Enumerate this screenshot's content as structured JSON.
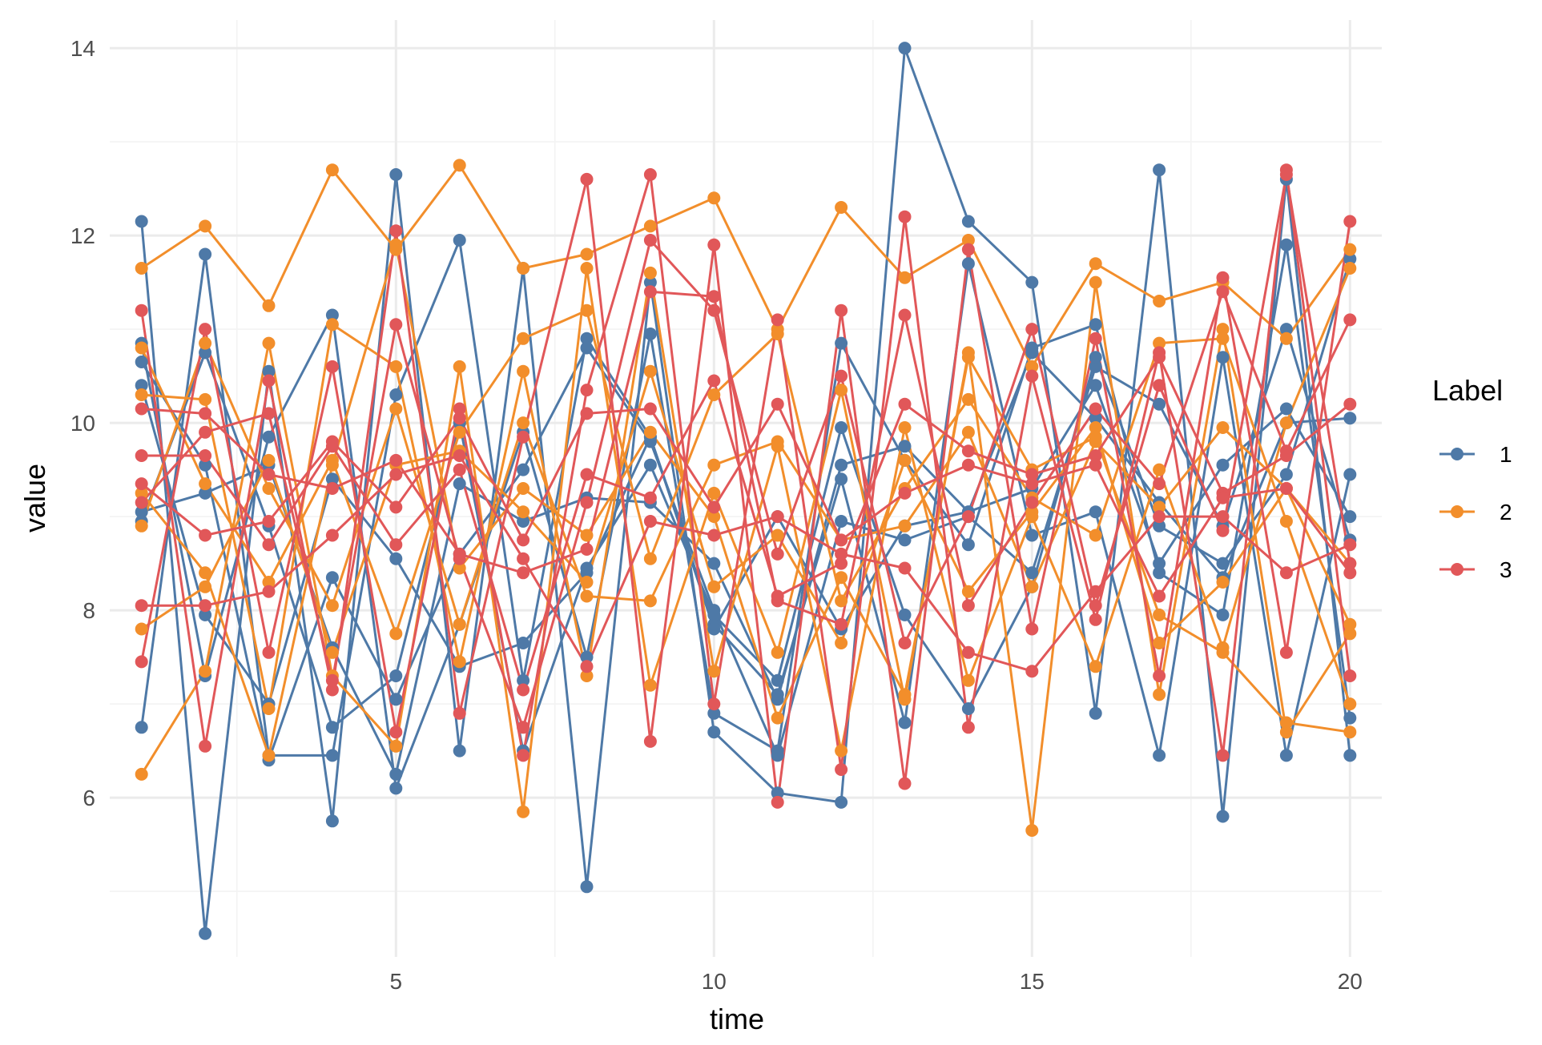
{
  "chart_data": {
    "type": "line",
    "title": "",
    "xlabel": "time",
    "ylabel": "value",
    "xlim": [
      0.5,
      20.5
    ],
    "ylim": [
      4.3,
      14.3
    ],
    "x_ticks": [
      5,
      10,
      15,
      20
    ],
    "y_ticks": [
      6,
      8,
      10,
      12,
      14
    ],
    "grid": true,
    "legend": {
      "title": "Label",
      "position": "right",
      "entries": [
        {
          "label": "1",
          "color": "#4e79a7"
        },
        {
          "label": "2",
          "color": "#f28e2b"
        },
        {
          "label": "3",
          "color": "#e15759"
        }
      ]
    },
    "x": [
      1,
      2,
      3,
      4,
      5,
      6,
      7,
      8,
      9,
      10,
      11,
      12,
      13,
      14,
      15,
      16,
      17,
      18,
      19,
      20
    ],
    "series": [
      {
        "name": "1",
        "group": "1",
        "color": "#4e79a7",
        "values": [
          12.15,
          4.55,
          10.55,
          5.75,
          12.65,
          6.5,
          11.65,
          5.05,
          11.5,
          6.7,
          6.05,
          5.95,
          14.0,
          12.15,
          11.5,
          6.9,
          12.7,
          5.8,
          12.6,
          6.45
        ]
      },
      {
        "name": "1",
        "group": "1",
        "color": "#4e79a7",
        "values": [
          6.75,
          11.8,
          6.45,
          6.45,
          10.3,
          11.95,
          7.25,
          10.9,
          9.85,
          7.85,
          7.1,
          9.4,
          6.8,
          11.7,
          8.8,
          9.05,
          6.45,
          10.7,
          6.45,
          9.45
        ]
      },
      {
        "name": "1",
        "group": "1",
        "color": "#4e79a7",
        "values": [
          10.85,
          7.3,
          9.85,
          11.15,
          6.1,
          7.85,
          9.9,
          7.5,
          10.95,
          6.9,
          6.5,
          10.85,
          9.6,
          8.7,
          10.8,
          11.05,
          8.4,
          7.95,
          11.9,
          6.85
        ]
      },
      {
        "name": "1",
        "group": "1",
        "color": "#4e79a7",
        "values": [
          10.65,
          9.55,
          6.4,
          8.35,
          7.05,
          8.6,
          9.5,
          10.8,
          9.8,
          8.0,
          6.45,
          8.95,
          8.75,
          9.0,
          8.4,
          10.6,
          10.2,
          8.9,
          11.0,
          8.75
        ]
      },
      {
        "name": "1",
        "group": "1",
        "color": "#4e79a7",
        "values": [
          10.4,
          7.95,
          7.0,
          9.4,
          8.55,
          7.4,
          7.65,
          8.4,
          9.85,
          7.8,
          9.0,
          7.8,
          8.9,
          9.05,
          9.3,
          10.4,
          8.5,
          9.55,
          10.15,
          9.0
        ]
      },
      {
        "name": "1",
        "group": "1",
        "color": "#4e79a7",
        "values": [
          9.05,
          9.25,
          9.55,
          7.6,
          6.25,
          9.35,
          8.95,
          9.2,
          9.15,
          8.5,
          7.05,
          9.55,
          9.75,
          9.05,
          10.75,
          10.05,
          9.15,
          8.35,
          10.0,
          10.05
        ]
      },
      {
        "name": "1",
        "group": "1",
        "color": "#4e79a7",
        "values": [
          8.95,
          10.75,
          8.9,
          6.75,
          7.3,
          10.0,
          6.5,
          8.45,
          9.55,
          7.95,
          7.25,
          9.95,
          7.95,
          6.95,
          8.25,
          10.7,
          8.9,
          8.5,
          9.45,
          11.75
        ]
      },
      {
        "name": "2",
        "group": "2",
        "color": "#f28e2b",
        "values": [
          11.65,
          12.1,
          11.25,
          12.7,
          11.85,
          12.75,
          11.65,
          11.8,
          12.1,
          12.4,
          11.0,
          12.3,
          11.55,
          11.95,
          10.6,
          11.7,
          11.3,
          11.5,
          10.9,
          11.85
        ]
      },
      {
        "name": "2",
        "group": "2",
        "color": "#f28e2b",
        "values": [
          6.25,
          7.35,
          10.85,
          7.3,
          6.55,
          10.6,
          5.85,
          11.65,
          7.2,
          9.25,
          7.55,
          10.35,
          7.05,
          10.75,
          5.65,
          11.5,
          7.1,
          11.0,
          6.7,
          7.75
        ]
      },
      {
        "name": "2",
        "group": "2",
        "color": "#f28e2b",
        "values": [
          10.3,
          10.25,
          6.95,
          11.05,
          10.6,
          7.45,
          10.55,
          7.3,
          11.6,
          7.35,
          9.75,
          6.5,
          9.95,
          7.25,
          9.0,
          7.4,
          9.5,
          7.6,
          10.0,
          11.65
        ]
      },
      {
        "name": "2",
        "group": "2",
        "color": "#f28e2b",
        "values": [
          10.8,
          9.35,
          8.3,
          9.6,
          7.75,
          9.9,
          10.9,
          11.2,
          8.55,
          10.3,
          10.95,
          8.1,
          9.3,
          10.25,
          9.2,
          8.8,
          10.85,
          10.9,
          8.95,
          7.0
        ]
      },
      {
        "name": "2",
        "group": "2",
        "color": "#f28e2b",
        "values": [
          8.9,
          10.85,
          9.3,
          8.05,
          10.15,
          7.85,
          10.0,
          8.15,
          8.1,
          9.55,
          9.8,
          8.75,
          8.9,
          9.9,
          8.25,
          9.8,
          9.1,
          9.95,
          9.3,
          8.5
        ]
      },
      {
        "name": "2",
        "group": "2",
        "color": "#f28e2b",
        "values": [
          7.8,
          8.25,
          9.6,
          7.55,
          9.55,
          9.7,
          9.05,
          8.3,
          10.55,
          8.25,
          8.8,
          7.65,
          9.6,
          8.2,
          9.05,
          9.95,
          7.65,
          8.3,
          9.3,
          7.85
        ]
      },
      {
        "name": "2",
        "group": "2",
        "color": "#f28e2b",
        "values": [
          9.25,
          8.4,
          6.45,
          9.55,
          11.9,
          8.45,
          9.3,
          8.8,
          9.9,
          9.0,
          6.85,
          8.35,
          7.1,
          10.7,
          9.5,
          9.85,
          7.95,
          7.55,
          6.8,
          6.7
        ]
      },
      {
        "name": "3",
        "group": "3",
        "color": "#e15759",
        "values": [
          11.2,
          6.55,
          10.45,
          7.15,
          12.05,
          6.9,
          9.85,
          12.6,
          6.6,
          11.9,
          5.95,
          11.2,
          6.15,
          11.85,
          7.8,
          10.9,
          7.3,
          11.55,
          7.55,
          12.15
        ]
      },
      {
        "name": "3",
        "group": "3",
        "color": "#e15759",
        "values": [
          7.45,
          11.0,
          7.55,
          10.6,
          6.7,
          10.15,
          6.45,
          10.35,
          12.65,
          7.0,
          11.1,
          6.3,
          12.2,
          6.75,
          10.5,
          7.9,
          10.75,
          6.45,
          12.7,
          7.3
        ]
      },
      {
        "name": "3",
        "group": "3",
        "color": "#e15759",
        "values": [
          9.15,
          9.9,
          10.1,
          7.25,
          11.05,
          8.55,
          6.75,
          9.15,
          11.95,
          11.2,
          8.6,
          10.5,
          7.65,
          9.0,
          11.0,
          8.05,
          10.4,
          8.85,
          12.65,
          8.5
        ]
      },
      {
        "name": "3",
        "group": "3",
        "color": "#e15759",
        "values": [
          10.15,
          10.1,
          9.45,
          9.3,
          9.6,
          8.6,
          8.4,
          8.65,
          11.4,
          11.35,
          8.1,
          7.85,
          11.15,
          8.05,
          9.15,
          10.15,
          9.35,
          11.4,
          9.7,
          11.1
        ]
      },
      {
        "name": "3",
        "group": "3",
        "color": "#e15759",
        "values": [
          9.65,
          9.65,
          8.7,
          9.75,
          8.7,
          9.5,
          7.15,
          9.45,
          9.2,
          10.45,
          8.15,
          8.5,
          10.2,
          9.7,
          9.45,
          9.65,
          10.7,
          9.25,
          9.65,
          10.2
        ]
      },
      {
        "name": "3",
        "group": "3",
        "color": "#e15759",
        "values": [
          9.35,
          8.8,
          8.95,
          9.8,
          9.1,
          10.05,
          8.75,
          10.1,
          10.15,
          9.1,
          10.2,
          8.75,
          9.25,
          9.55,
          9.35,
          9.55,
          8.15,
          9.2,
          9.3,
          8.4
        ]
      },
      {
        "name": "3",
        "group": "3",
        "color": "#e15759",
        "values": [
          8.05,
          8.05,
          8.2,
          8.8,
          9.45,
          9.65,
          8.55,
          7.4,
          8.95,
          8.8,
          9.0,
          8.6,
          8.45,
          7.55,
          7.35,
          8.2,
          9.0,
          9.0,
          8.4,
          8.7
        ]
      }
    ]
  }
}
